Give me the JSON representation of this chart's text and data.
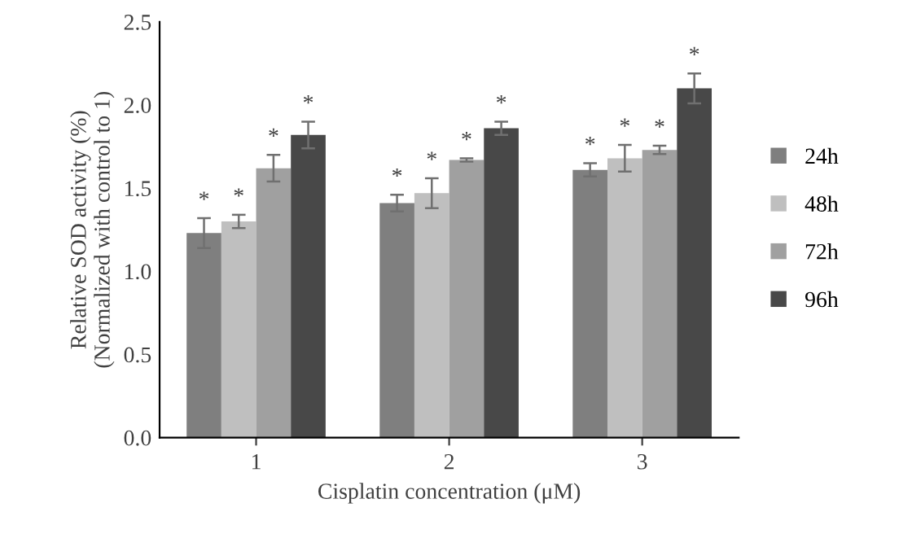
{
  "chart_data": {
    "type": "bar",
    "xlabel": "Cisplatin concentration (μM)",
    "ylabel": "Relative SOD activity (%)\n(Normalized with control to 1)",
    "categories": [
      "1",
      "2",
      "3"
    ],
    "series": [
      {
        "name": "24h",
        "color": "#7f7f7f",
        "values": [
          1.23,
          1.41,
          1.61
        ],
        "errors": [
          0.09,
          0.05,
          0.04
        ],
        "value_labels": [
          "*",
          "*",
          "*"
        ]
      },
      {
        "name": "48h",
        "color": "#bfbfbf",
        "values": [
          1.3,
          1.47,
          1.68
        ],
        "errors": [
          0.04,
          0.09,
          0.08
        ],
        "value_labels": [
          "*",
          "*",
          "*"
        ]
      },
      {
        "name": "72h",
        "color": "#a0a0a0",
        "values": [
          1.62,
          1.67,
          1.73
        ],
        "errors": [
          0.08,
          0.01,
          0.025
        ],
        "value_labels": [
          "*",
          "*",
          "*"
        ]
      },
      {
        "name": "96h",
        "color": "#484848",
        "values": [
          1.82,
          1.86,
          2.1
        ],
        "errors": [
          0.08,
          0.04,
          0.09
        ],
        "value_labels": [
          "*",
          "*",
          "*"
        ]
      }
    ],
    "ylim": [
      0,
      2.5
    ],
    "yticks": [
      {
        "value": 0,
        "label": "0.0"
      },
      {
        "value": 0.5,
        "label": "0.5"
      },
      {
        "value": 1,
        "label": "1.0"
      },
      {
        "value": 1.5,
        "label": "1.5"
      },
      {
        "value": 2,
        "label": "2.0"
      },
      {
        "value": 2.5,
        "label": "2.5"
      }
    ],
    "grid": false,
    "legend": "right"
  }
}
